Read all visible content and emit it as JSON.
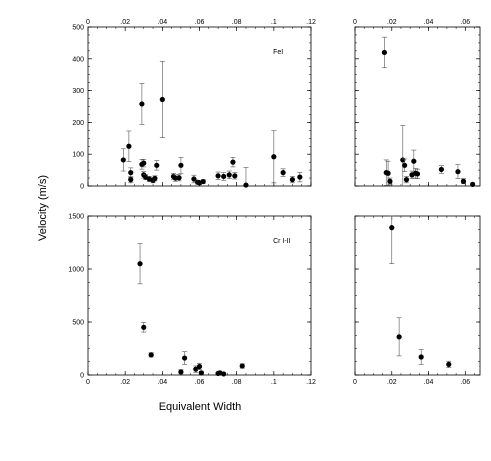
{
  "figure": {
    "ylabel": "Velocity (m/s)",
    "xlabel": "Equivalent Width"
  },
  "chart_data": [
    {
      "type": "scatter",
      "panel": "top-left",
      "annotation": "FeI",
      "xlim": [
        0,
        0.12
      ],
      "ylim": [
        0,
        500
      ],
      "xticks": [
        0,
        0.02,
        0.04,
        0.06,
        0.08,
        0.1,
        0.12
      ],
      "xtick_labels": [
        "0",
        ".02",
        ".04",
        ".06",
        ".08",
        ".1",
        ".12"
      ],
      "xtick_labels_top": true,
      "yticks": [
        0,
        100,
        200,
        300,
        400,
        500
      ],
      "ytick_labels": [
        "0",
        "100",
        "200",
        "300",
        "400",
        "500"
      ],
      "points": [
        {
          "x": 0.019,
          "y": 82,
          "err": 35
        },
        {
          "x": 0.022,
          "y": 125,
          "err": 48
        },
        {
          "x": 0.023,
          "y": 42,
          "err": 15
        },
        {
          "x": 0.023,
          "y": 20,
          "err": 10
        },
        {
          "x": 0.029,
          "y": 258,
          "err": 64
        },
        {
          "x": 0.029,
          "y": 68,
          "err": 15
        },
        {
          "x": 0.03,
          "y": 72,
          "err": 12
        },
        {
          "x": 0.03,
          "y": 35,
          "err": 10
        },
        {
          "x": 0.031,
          "y": 28,
          "err": 8
        },
        {
          "x": 0.033,
          "y": 22,
          "err": 8
        },
        {
          "x": 0.035,
          "y": 18,
          "err": 8
        },
        {
          "x": 0.036,
          "y": 24,
          "err": 8
        },
        {
          "x": 0.037,
          "y": 65,
          "err": 15
        },
        {
          "x": 0.04,
          "y": 272,
          "err": 120
        },
        {
          "x": 0.046,
          "y": 30,
          "err": 10
        },
        {
          "x": 0.047,
          "y": 25,
          "err": 10
        },
        {
          "x": 0.049,
          "y": 26,
          "err": 10
        },
        {
          "x": 0.05,
          "y": 65,
          "err": 25
        },
        {
          "x": 0.057,
          "y": 22,
          "err": 12
        },
        {
          "x": 0.059,
          "y": 12,
          "err": 6
        },
        {
          "x": 0.06,
          "y": 10,
          "err": 6
        },
        {
          "x": 0.062,
          "y": 14,
          "err": 6
        },
        {
          "x": 0.07,
          "y": 32,
          "err": 12
        },
        {
          "x": 0.073,
          "y": 30,
          "err": 12
        },
        {
          "x": 0.076,
          "y": 35,
          "err": 12
        },
        {
          "x": 0.078,
          "y": 75,
          "err": 15
        },
        {
          "x": 0.079,
          "y": 32,
          "err": 10
        },
        {
          "x": 0.085,
          "y": 3,
          "err": 55
        },
        {
          "x": 0.1,
          "y": 92,
          "err": 82
        },
        {
          "x": 0.105,
          "y": 42,
          "err": 12
        },
        {
          "x": 0.11,
          "y": 20,
          "err": 10
        },
        {
          "x": 0.114,
          "y": 28,
          "err": 15
        }
      ]
    },
    {
      "type": "scatter",
      "panel": "top-right",
      "xlim": [
        0,
        0.068
      ],
      "ylim": [
        0,
        500
      ],
      "xticks": [
        0,
        0.02,
        0.04,
        0.06
      ],
      "xtick_labels": [
        "0",
        ".02",
        ".04",
        ".06"
      ],
      "xtick_labels_top": true,
      "yticks": [
        0,
        100,
        200,
        300,
        400,
        500
      ],
      "ytick_labels": [],
      "points": [
        {
          "x": 0.016,
          "y": 420,
          "err": 48
        },
        {
          "x": 0.017,
          "y": 42,
          "err": 40
        },
        {
          "x": 0.018,
          "y": 40,
          "err": 38
        },
        {
          "x": 0.019,
          "y": 15,
          "err": 10
        },
        {
          "x": 0.026,
          "y": 82,
          "err": 108
        },
        {
          "x": 0.027,
          "y": 65,
          "err": 20
        },
        {
          "x": 0.028,
          "y": 20,
          "err": 10
        },
        {
          "x": 0.031,
          "y": 35,
          "err": 12
        },
        {
          "x": 0.032,
          "y": 78,
          "err": 35
        },
        {
          "x": 0.033,
          "y": 40,
          "err": 15
        },
        {
          "x": 0.034,
          "y": 38,
          "err": 15
        },
        {
          "x": 0.047,
          "y": 52,
          "err": 12
        },
        {
          "x": 0.056,
          "y": 45,
          "err": 22
        },
        {
          "x": 0.059,
          "y": 15,
          "err": 8
        },
        {
          "x": 0.064,
          "y": 5,
          "err": 5
        }
      ]
    },
    {
      "type": "scatter",
      "panel": "bottom-left",
      "annotation": "Cr I-II",
      "xlim": [
        0,
        0.12
      ],
      "ylim": [
        0,
        1500
      ],
      "xticks": [
        0,
        0.02,
        0.04,
        0.06,
        0.08,
        0.1,
        0.12
      ],
      "xtick_labels": [
        "0",
        ".02",
        ".04",
        ".06",
        ".08",
        ".1",
        ".12"
      ],
      "yticks": [
        0,
        500,
        1000,
        1500
      ],
      "ytick_labels": [
        "0",
        "500",
        "1000",
        "1500"
      ],
      "points": [
        {
          "x": 0.028,
          "y": 1050,
          "err": 190
        },
        {
          "x": 0.03,
          "y": 450,
          "err": 45
        },
        {
          "x": 0.034,
          "y": 190,
          "err": 20
        },
        {
          "x": 0.05,
          "y": 30,
          "err": 20
        },
        {
          "x": 0.052,
          "y": 160,
          "err": 60
        },
        {
          "x": 0.058,
          "y": 55,
          "err": 30
        },
        {
          "x": 0.06,
          "y": 80,
          "err": 30
        },
        {
          "x": 0.061,
          "y": 20,
          "err": 15
        },
        {
          "x": 0.07,
          "y": 15,
          "err": 10
        },
        {
          "x": 0.071,
          "y": 20,
          "err": 10
        },
        {
          "x": 0.073,
          "y": 10,
          "err": 8
        },
        {
          "x": 0.083,
          "y": 85,
          "err": 20
        }
      ]
    },
    {
      "type": "scatter",
      "panel": "bottom-right",
      "xlim": [
        0,
        0.068
      ],
      "ylim": [
        0,
        1500
      ],
      "xticks": [
        0,
        0.02,
        0.04,
        0.06
      ],
      "xtick_labels": [
        "0",
        ".02",
        ".04",
        ".06"
      ],
      "yticks": [
        0,
        500,
        1000,
        1500
      ],
      "ytick_labels": [],
      "points": [
        {
          "x": 0.02,
          "y": 1390,
          "err": 340
        },
        {
          "x": 0.024,
          "y": 360,
          "err": 180
        },
        {
          "x": 0.036,
          "y": 170,
          "err": 70
        },
        {
          "x": 0.051,
          "y": 100,
          "err": 30
        }
      ]
    }
  ]
}
